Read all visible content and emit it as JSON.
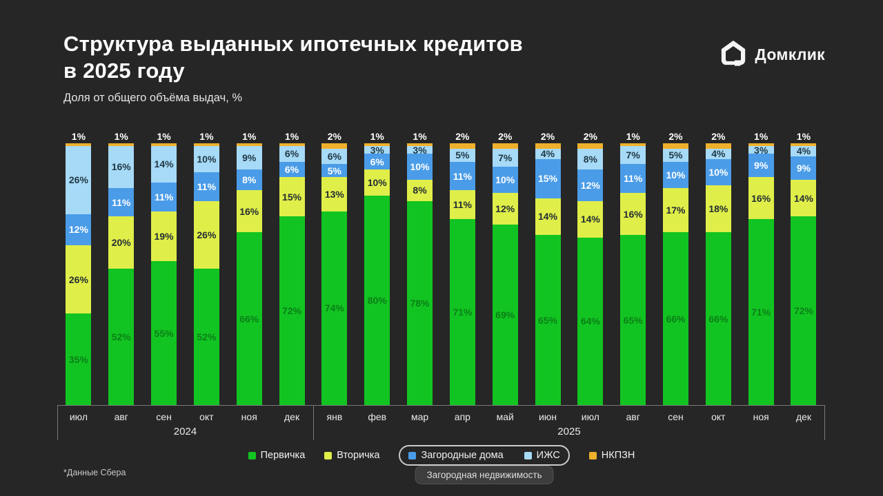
{
  "header": {
    "title_line1": "Структура выданных ипотечных кредитов",
    "title_line2": "в 2025 году",
    "subtitle": "Доля от общего объёма выдач, %",
    "logo_text": "Домклик"
  },
  "chart_data": {
    "type": "bar",
    "stacked": true,
    "unit": "%",
    "ylim": [
      0,
      100
    ],
    "grid": false,
    "legend_position": "bottom",
    "categories": [
      "июл",
      "авг",
      "сен",
      "окт",
      "ноя",
      "дек",
      "янв",
      "фев",
      "мар",
      "апр",
      "май",
      "июн",
      "июл",
      "авг",
      "сен",
      "окт",
      "ноя",
      "дек"
    ],
    "year_groups": [
      {
        "label": "2024",
        "from": 0,
        "to": 5
      },
      {
        "label": "2025",
        "from": 6,
        "to": 17
      }
    ],
    "series": [
      {
        "name": "Первичка",
        "color": "#12c421",
        "label_color": "#0a8018",
        "values": [
          35,
          52,
          55,
          52,
          66,
          72,
          74,
          80,
          78,
          71,
          69,
          65,
          64,
          65,
          66,
          66,
          71,
          72
        ]
      },
      {
        "name": "Вторичка",
        "color": "#e0ee49",
        "label_color": "#222d33",
        "values": [
          26,
          20,
          19,
          26,
          16,
          15,
          13,
          10,
          8,
          11,
          12,
          14,
          14,
          16,
          17,
          18,
          16,
          14
        ]
      },
      {
        "name": "Загородные дома",
        "color": "#4a9ce8",
        "label_color": "#ffffff",
        "values": [
          12,
          11,
          11,
          11,
          8,
          6,
          5,
          6,
          10,
          11,
          10,
          15,
          12,
          11,
          10,
          10,
          9,
          9
        ]
      },
      {
        "name": "ИЖС",
        "color": "#a6daf7",
        "label_color": "#1f3642",
        "values": [
          26,
          16,
          14,
          10,
          9,
          6,
          6,
          3,
          3,
          5,
          7,
          4,
          8,
          7,
          5,
          4,
          3,
          4
        ]
      },
      {
        "name": "НКПЗН",
        "color": "#eeb02c",
        "label_color": "#ffffff",
        "values": [
          1,
          1,
          1,
          1,
          1,
          1,
          2,
          1,
          1,
          2,
          2,
          2,
          2,
          1,
          2,
          2,
          1,
          1
        ]
      }
    ],
    "legend_group": {
      "members": [
        "Загородные дома",
        "ИЖС"
      ],
      "label": "Загородная недвижимость"
    }
  },
  "footnote": "*Данные Сбера"
}
